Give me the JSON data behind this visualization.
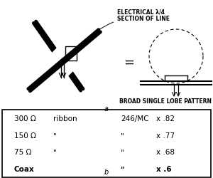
{
  "label_a": "a",
  "label_b": "b",
  "electrical_label": "ELECTRICAL λ/4\nSECTION OF LINE",
  "broad_label": "BROAD SINGLE LOBE PATTERN",
  "table_rows": [
    {
      "imp": "300 Ω",
      "type": "ribbon",
      "val1": "246/MC",
      "val2": "x .82"
    },
    {
      "imp": "150 Ω",
      "type": "\"",
      "val1": "\"",
      "val2": "x .77"
    },
    {
      "imp": "75 Ω",
      "type": "\"",
      "val1": "\"",
      "val2": "x .68"
    },
    {
      "imp": "Coax",
      "type": "",
      "val1": "\"",
      "val2": "x .6"
    }
  ],
  "bg_color": "#ffffff",
  "line_color": "#000000",
  "font_size_small": 5.5,
  "font_size_med": 7.0,
  "font_size_table": 7.5
}
